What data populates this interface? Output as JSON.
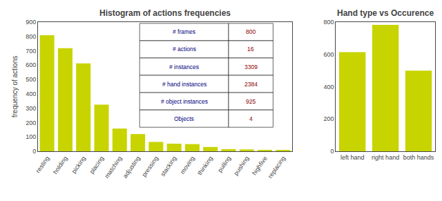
{
  "chart_data": [
    {
      "type": "bar",
      "title": "Histogram of actions frequencies",
      "ylabel": "frequency of actions",
      "categories": [
        "resting",
        "holding",
        "picking",
        "placing",
        "matching",
        "adjusting",
        "pressing",
        "stacking",
        "moving",
        "thinking",
        "pulling",
        "pushing",
        "highfive",
        "replacing"
      ],
      "values": [
        808,
        718,
        612,
        325,
        158,
        120,
        65,
        53,
        50,
        30,
        15,
        13,
        10,
        6
      ],
      "color": "#c8d400",
      "ylim": [
        0,
        900
      ],
      "yticks": [
        0,
        100,
        200,
        300,
        400,
        500,
        600,
        700,
        800,
        900
      ],
      "grid": false,
      "table": {
        "labels": [
          "# frames",
          "# actions",
          "# instances",
          "# hand instances",
          "# object instances",
          "Objects"
        ],
        "values": [
          800,
          16,
          3309,
          2384,
          925,
          4
        ]
      }
    },
    {
      "type": "bar",
      "title": "Hand type vs Occurence",
      "categories": [
        "left hand",
        "right hand",
        "both hands"
      ],
      "values": [
        614,
        783,
        500
      ],
      "color": "#c8d400",
      "ylim": [
        0,
        800
      ],
      "yticks": [
        0,
        200,
        400,
        600,
        800
      ],
      "grid": false
    }
  ]
}
